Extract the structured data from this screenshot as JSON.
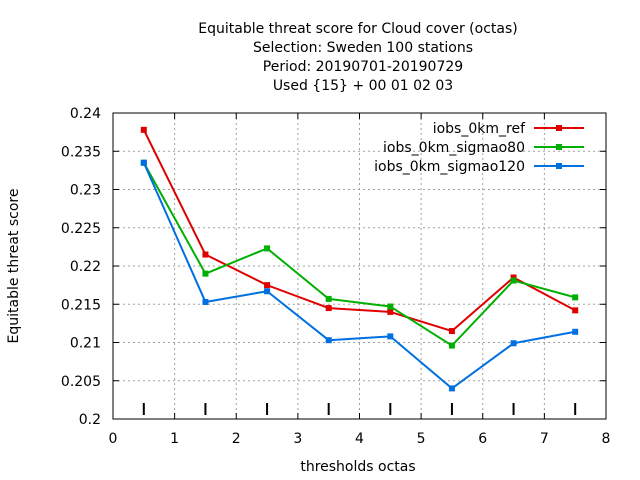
{
  "chart_data": {
    "type": "line",
    "title_lines": [
      "Equitable threat score  for Cloud cover (octas)",
      "Selection: Sweden    100 stations",
      "Period: 20190701-20190729",
      "Used {15} + 00 01 02 03"
    ],
    "xlabel": "thresholds octas",
    "ylabel": "Equitable threat score",
    "xlim": [
      0,
      8
    ],
    "ylim": [
      0.2,
      0.24
    ],
    "x_ticks": [
      0,
      1,
      2,
      3,
      4,
      5,
      6,
      7,
      8
    ],
    "y_ticks": [
      0.2,
      0.205,
      0.21,
      0.215,
      0.22,
      0.225,
      0.23,
      0.235,
      0.24
    ],
    "x_tick_labels": [
      "0",
      "1",
      "2",
      "3",
      "4",
      "5",
      "6",
      "7",
      "8"
    ],
    "y_tick_labels": [
      "0.2",
      "0.205",
      "0.21",
      "0.215",
      "0.22",
      "0.225",
      "0.23",
      "0.235",
      "0.24"
    ],
    "grid": true,
    "legend_position": "top-right",
    "bottom_markers_x": [
      0.5,
      1.5,
      2.5,
      3.5,
      4.5,
      5.5,
      6.5,
      7.5
    ],
    "x": [
      0.5,
      1.5,
      2.5,
      3.5,
      4.5,
      5.5,
      6.5,
      7.5
    ],
    "series": [
      {
        "name": "iobs_0km_ref",
        "color": "#e00000",
        "values": [
          0.2378,
          0.2215,
          0.2175,
          0.2145,
          0.214,
          0.2115,
          0.2185,
          0.2142
        ]
      },
      {
        "name": "iobs_0km_sigmao80",
        "color": "#00b000",
        "values": [
          0.2335,
          0.219,
          0.2223,
          0.2157,
          0.2147,
          0.2096,
          0.2181,
          0.2159
        ]
      },
      {
        "name": "iobs_0km_sigmao120",
        "color": "#0070e0",
        "values": [
          0.2335,
          0.2153,
          0.2167,
          0.2103,
          0.2108,
          0.204,
          0.2099,
          0.2114
        ]
      }
    ]
  }
}
